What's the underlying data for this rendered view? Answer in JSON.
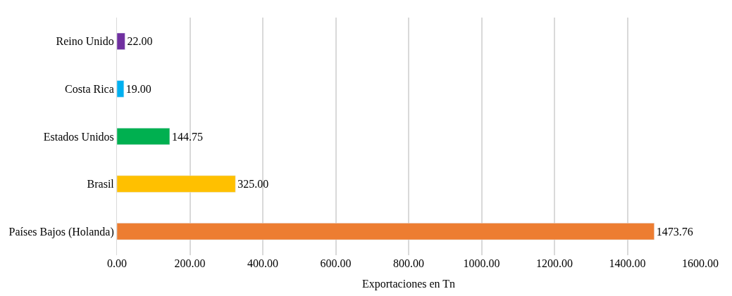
{
  "chart_data": {
    "type": "bar",
    "orientation": "horizontal",
    "xlabel": "Exportaciones en Tn",
    "categories": [
      "Reino Unido",
      "Costa Rica",
      "Estados Unidos",
      "Brasil",
      "Países Bajos (Holanda)"
    ],
    "values": [
      22,
      19,
      144.75,
      325,
      1473.76
    ],
    "colors": [
      "#7030a0",
      "#00b0f0",
      "#00b050",
      "#ffc000",
      "#ed7d31"
    ],
    "value_labels": [
      "22.00",
      "19.00",
      "144.75",
      "325.00",
      "1473.76"
    ],
    "xlim": [
      0,
      1600
    ],
    "xticks": [
      {
        "value": 0,
        "label": "0.00"
      },
      {
        "value": 200,
        "label": "200.00"
      },
      {
        "value": 400,
        "label": "400.00"
      },
      {
        "value": 600,
        "label": "600.00"
      },
      {
        "value": 800,
        "label": "800.00"
      },
      {
        "value": 1000,
        "label": "1000.00"
      },
      {
        "value": 1200,
        "label": "1200.00"
      },
      {
        "value": 1400,
        "label": "1400.00"
      },
      {
        "value": 1600,
        "label": "1600.00"
      }
    ],
    "grid": "x",
    "legend": false
  }
}
